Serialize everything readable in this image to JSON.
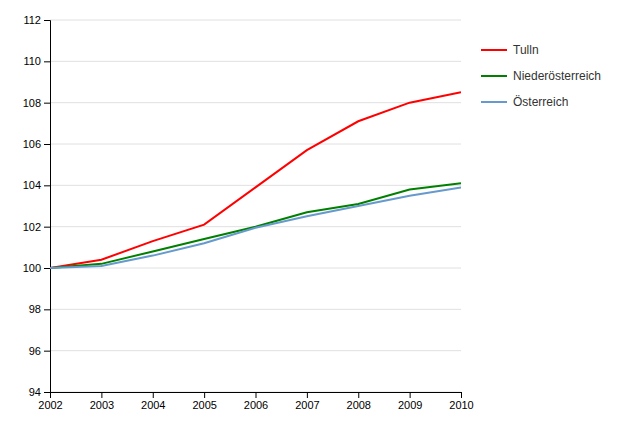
{
  "chart_data": {
    "type": "line",
    "x": [
      2002,
      2003,
      2004,
      2005,
      2006,
      2007,
      2008,
      2009,
      2010
    ],
    "series": [
      {
        "name": "Tulln",
        "color": "#ff0000",
        "values": [
          100.0,
          100.4,
          101.3,
          102.1,
          103.9,
          105.7,
          107.1,
          108.0,
          108.5
        ]
      },
      {
        "name": "Niederösterreich",
        "color": "#008000",
        "values": [
          100.0,
          100.2,
          100.8,
          101.4,
          102.0,
          102.7,
          103.1,
          103.8,
          104.1
        ]
      },
      {
        "name": "Österreich",
        "color": "#6699cc",
        "values": [
          100.0,
          100.1,
          100.6,
          101.2,
          101.95,
          102.5,
          103.0,
          103.5,
          103.9
        ]
      }
    ],
    "xlim": [
      2002,
      2010
    ],
    "xticks": [
      2002,
      2003,
      2004,
      2005,
      2006,
      2007,
      2008,
      2009,
      2010
    ],
    "ylim": [
      94,
      112
    ],
    "yticks": [
      94,
      96,
      98,
      100,
      102,
      104,
      106,
      108,
      110,
      112
    ],
    "grid": true,
    "legend": "right"
  }
}
